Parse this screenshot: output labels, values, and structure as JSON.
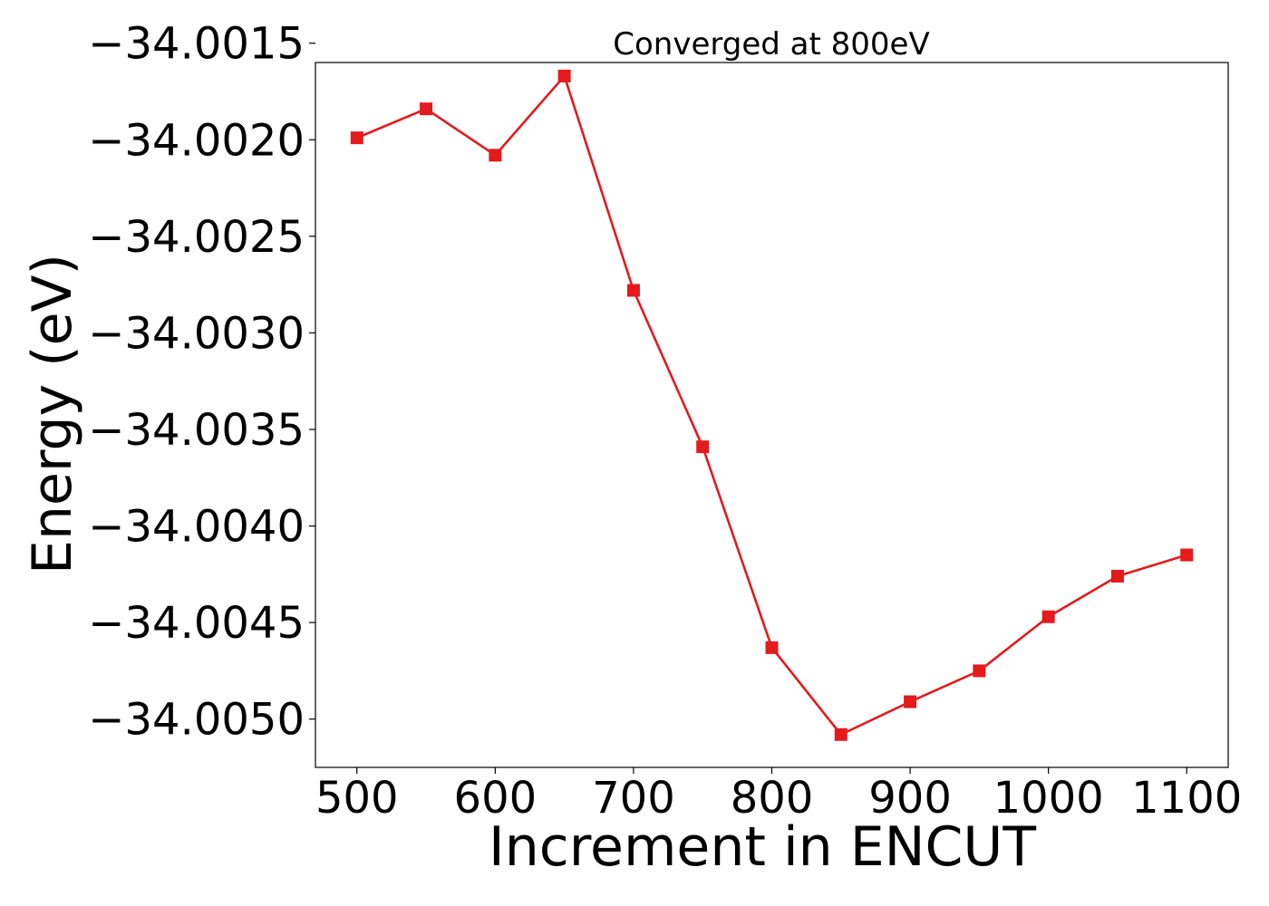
{
  "chart_data": {
    "type": "line",
    "title": "Converged at 800eV",
    "xlabel": "Increment in ENCUT",
    "ylabel": "Energy (eV)",
    "x": [
      500,
      550,
      600,
      650,
      700,
      750,
      800,
      850,
      900,
      950,
      1000,
      1050,
      1100
    ],
    "series": [
      {
        "values": [
          -34.00199,
          -34.00184,
          -34.00208,
          -34.00167,
          -34.00278,
          -34.00359,
          -34.00463,
          -34.00508,
          -34.00491,
          -34.00475,
          -34.00447,
          -34.00426,
          -34.00415
        ],
        "color": "#e41a1c",
        "marker": "square"
      }
    ],
    "xlim": [
      470,
      1130
    ],
    "ylim": [
      -34.00525,
      -34.0016
    ],
    "xticks": [
      500,
      600,
      700,
      800,
      900,
      1000,
      1100
    ],
    "xtick_labels": [
      "500",
      "600",
      "700",
      "800",
      "900",
      "1000",
      "1100"
    ],
    "yticks": [
      -34.0015,
      -34.002,
      -34.0025,
      -34.003,
      -34.0035,
      -34.004,
      -34.0045,
      -34.005
    ],
    "ytick_labels": [
      "−34.0015",
      "−34.0020",
      "−34.0025",
      "−34.0030",
      "−34.0035",
      "−34.0040",
      "−34.0045",
      "−34.0050"
    ],
    "grid": false,
    "legend": "none"
  }
}
